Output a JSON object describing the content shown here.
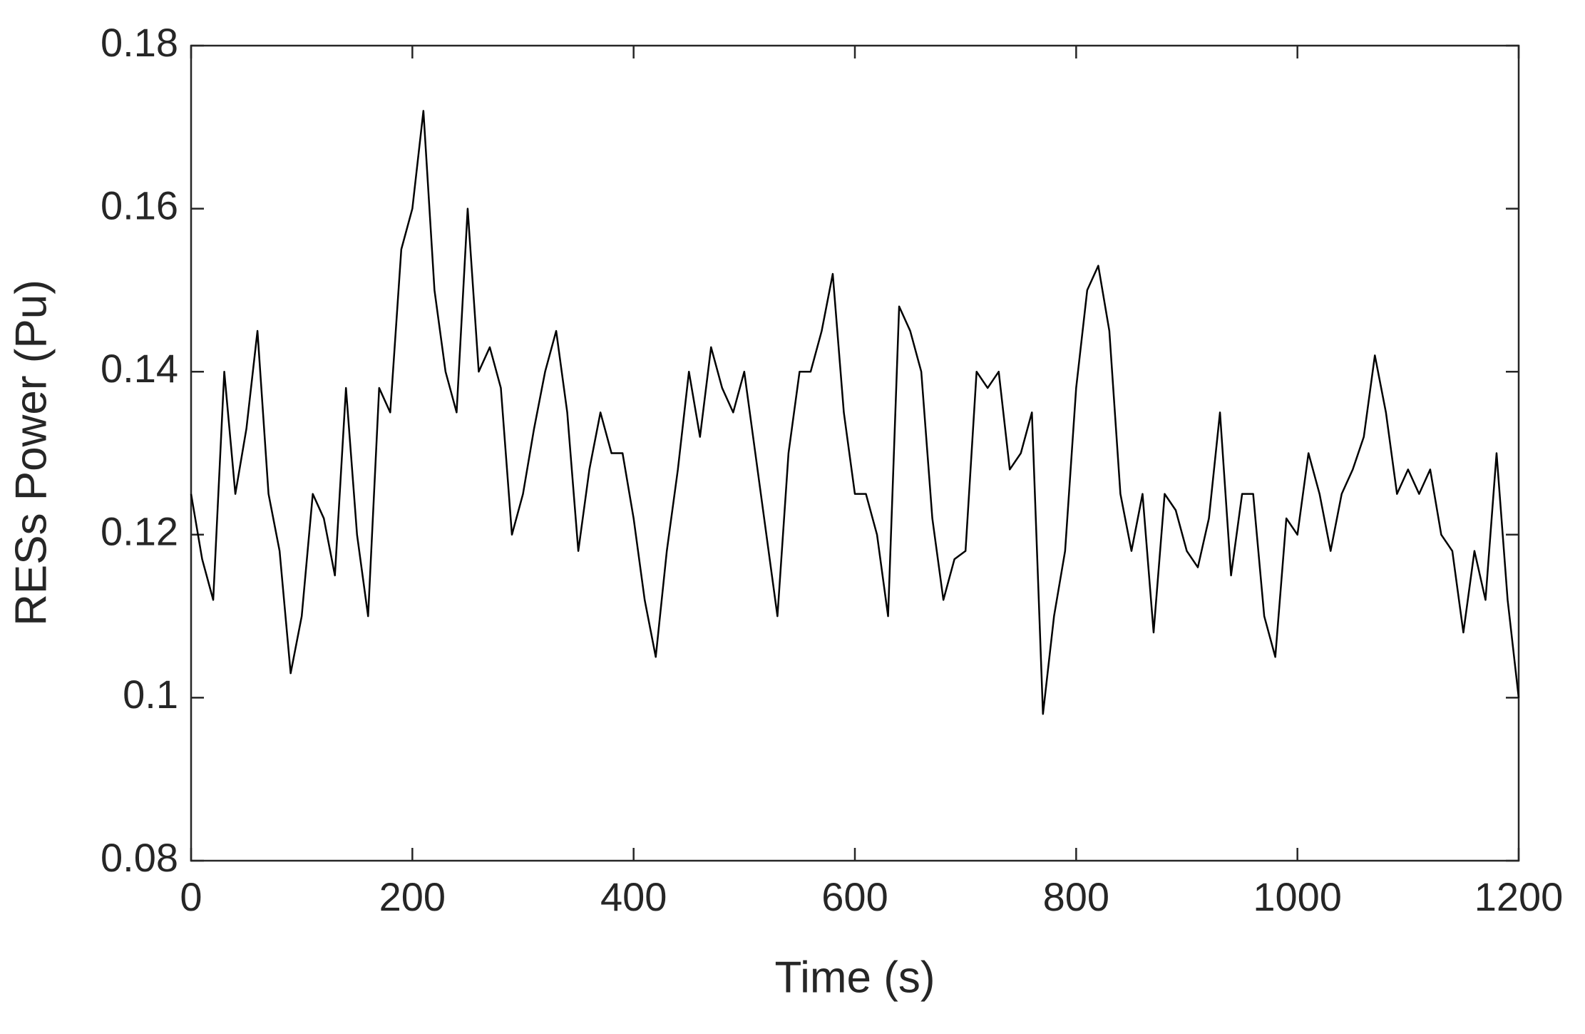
{
  "chart_data": {
    "type": "line",
    "xlabel": "Time (s)",
    "ylabel": "RESs Power (Pu)",
    "x": [
      0,
      10,
      20,
      30,
      40,
      50,
      60,
      70,
      80,
      90,
      100,
      110,
      120,
      130,
      140,
      150,
      160,
      170,
      180,
      190,
      200,
      210,
      220,
      230,
      240,
      250,
      260,
      270,
      280,
      290,
      300,
      310,
      320,
      330,
      340,
      350,
      360,
      370,
      380,
      390,
      400,
      410,
      420,
      430,
      440,
      450,
      460,
      470,
      480,
      490,
      500,
      510,
      520,
      530,
      540,
      550,
      560,
      570,
      580,
      590,
      600,
      610,
      620,
      630,
      640,
      650,
      660,
      670,
      680,
      690,
      700,
      710,
      720,
      730,
      740,
      750,
      760,
      770,
      780,
      790,
      800,
      810,
      820,
      830,
      840,
      850,
      860,
      870,
      880,
      890,
      900,
      910,
      920,
      930,
      940,
      950,
      960,
      970,
      980,
      990,
      1000,
      1010,
      1020,
      1030,
      1040,
      1050,
      1060,
      1070,
      1080,
      1090,
      1100,
      1110,
      1120,
      1130,
      1140,
      1150,
      1160,
      1170,
      1180,
      1190,
      1200
    ],
    "series": [
      {
        "color": "#000000",
        "values": [
          0.125,
          0.117,
          0.112,
          0.14,
          0.125,
          0.133,
          0.145,
          0.125,
          0.118,
          0.103,
          0.11,
          0.125,
          0.122,
          0.115,
          0.138,
          0.12,
          0.11,
          0.138,
          0.135,
          0.155,
          0.16,
          0.172,
          0.15,
          0.14,
          0.135,
          0.16,
          0.14,
          0.143,
          0.138,
          0.12,
          0.125,
          0.133,
          0.14,
          0.145,
          0.135,
          0.118,
          0.128,
          0.135,
          0.13,
          0.13,
          0.122,
          0.112,
          0.105,
          0.118,
          0.128,
          0.14,
          0.132,
          0.143,
          0.138,
          0.135,
          0.14,
          0.13,
          0.12,
          0.11,
          0.13,
          0.14,
          0.14,
          0.145,
          0.152,
          0.135,
          0.125,
          0.125,
          0.12,
          0.11,
          0.148,
          0.145,
          0.14,
          0.122,
          0.112,
          0.117,
          0.118,
          0.14,
          0.138,
          0.14,
          0.128,
          0.13,
          0.135,
          0.098,
          0.11,
          0.118,
          0.138,
          0.15,
          0.153,
          0.145,
          0.125,
          0.118,
          0.125,
          0.108,
          0.125,
          0.123,
          0.118,
          0.116,
          0.122,
          0.135,
          0.115,
          0.125,
          0.125,
          0.11,
          0.105,
          0.122,
          0.12,
          0.13,
          0.125,
          0.118,
          0.125,
          0.128,
          0.132,
          0.142,
          0.135,
          0.125,
          0.128,
          0.125,
          0.128,
          0.12,
          0.118,
          0.108,
          0.118,
          0.112,
          0.13,
          0.112,
          0.1
        ]
      }
    ],
    "xlim": [
      0,
      1200
    ],
    "xticks": [
      0,
      200,
      400,
      600,
      800,
      1000,
      1200
    ],
    "ylim": [
      0.08,
      0.18
    ],
    "yticks": [
      0.08,
      0.1,
      0.12,
      0.14,
      0.16,
      0.18
    ]
  }
}
